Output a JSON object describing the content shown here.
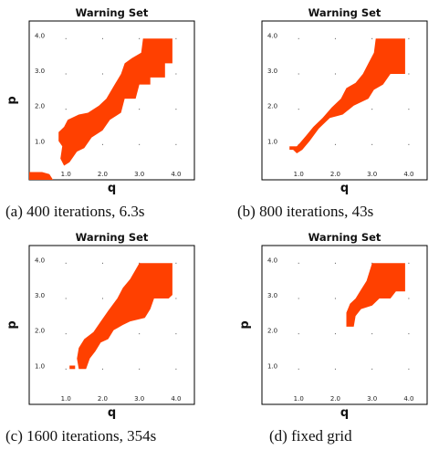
{
  "chart_data": [
    {
      "id": "a",
      "type": "heatmap",
      "title": "Warning Set",
      "xlabel": "q",
      "ylabel": "p",
      "xlim": [
        0.0,
        4.5
      ],
      "ylim": [
        0.0,
        4.5
      ],
      "xticks": [
        "1.0",
        "2.0",
        "3.0",
        "4.0"
      ],
      "yticks": [
        "1.0",
        "2.0",
        "3.0",
        "4.0"
      ],
      "region_color": "#ff4000",
      "caption": "(a)  400 iterations, 6.3s",
      "region_polygons": [
        [
          [
            3.1,
            4.0
          ],
          [
            3.9,
            4.0
          ],
          [
            3.9,
            3.3
          ],
          [
            3.7,
            3.3
          ],
          [
            3.7,
            2.9
          ],
          [
            3.3,
            2.9
          ],
          [
            3.3,
            2.7
          ],
          [
            3.0,
            2.7
          ],
          [
            2.9,
            2.3
          ],
          [
            2.6,
            2.3
          ],
          [
            2.5,
            1.9
          ],
          [
            2.2,
            1.7
          ],
          [
            2.0,
            1.4
          ],
          [
            1.7,
            1.2
          ],
          [
            1.5,
            0.9
          ],
          [
            1.3,
            0.8
          ],
          [
            1.1,
            0.5
          ],
          [
            0.95,
            0.4
          ],
          [
            0.85,
            0.6
          ],
          [
            0.9,
            0.95
          ],
          [
            0.8,
            1.1
          ],
          [
            0.8,
            1.35
          ],
          [
            0.95,
            1.5
          ],
          [
            1.05,
            1.7
          ],
          [
            1.35,
            1.85
          ],
          [
            1.6,
            1.9
          ],
          [
            1.9,
            2.1
          ],
          [
            2.1,
            2.3
          ],
          [
            2.3,
            2.65
          ],
          [
            2.5,
            3.0
          ],
          [
            2.6,
            3.3
          ],
          [
            2.8,
            3.45
          ],
          [
            3.05,
            3.6
          ]
        ],
        [
          [
            0.0,
            0.22
          ],
          [
            0.35,
            0.22
          ],
          [
            0.55,
            0.16
          ],
          [
            0.65,
            0.0
          ],
          [
            0.0,
            0.0
          ]
        ]
      ]
    },
    {
      "id": "b",
      "type": "heatmap",
      "title": "Warning Set",
      "xlabel": "q",
      "ylabel": "",
      "xlim": [
        0.0,
        4.5
      ],
      "ylim": [
        0.0,
        4.5
      ],
      "xticks": [
        "1.0",
        "2.0",
        "3.0",
        "4.0"
      ],
      "yticks": [
        "1.0",
        "2.0",
        "3.0",
        "4.0"
      ],
      "region_color": "#ff4000",
      "caption": "(b) 800 iterations, 43s",
      "region_polygons": [
        [
          [
            3.1,
            4.0
          ],
          [
            3.9,
            4.0
          ],
          [
            3.9,
            3.0
          ],
          [
            3.5,
            3.0
          ],
          [
            3.3,
            2.7
          ],
          [
            3.05,
            2.55
          ],
          [
            2.9,
            2.3
          ],
          [
            2.5,
            2.1
          ],
          [
            2.2,
            1.85
          ],
          [
            1.85,
            1.75
          ],
          [
            1.55,
            1.45
          ],
          [
            1.3,
            1.1
          ],
          [
            1.1,
            0.85
          ],
          [
            0.95,
            0.75
          ],
          [
            0.85,
            0.85
          ],
          [
            1.0,
            1.0
          ],
          [
            1.2,
            1.25
          ],
          [
            1.4,
            1.5
          ],
          [
            1.65,
            1.75
          ],
          [
            1.9,
            2.05
          ],
          [
            2.15,
            2.3
          ],
          [
            2.3,
            2.6
          ],
          [
            2.55,
            2.75
          ],
          [
            2.75,
            3.0
          ],
          [
            2.9,
            3.3
          ],
          [
            3.05,
            3.6
          ]
        ],
        [
          [
            0.75,
            0.95
          ],
          [
            0.95,
            0.95
          ],
          [
            0.95,
            0.85
          ],
          [
            0.75,
            0.85
          ]
        ]
      ]
    },
    {
      "id": "c",
      "type": "heatmap",
      "title": "Warning Set",
      "xlabel": "q",
      "ylabel": "p",
      "xlim": [
        0.0,
        4.5
      ],
      "ylim": [
        0.0,
        4.5
      ],
      "xticks": [
        "1.0",
        "2.0",
        "3.0",
        "4.0"
      ],
      "yticks": [
        "1.0",
        "2.0",
        "3.0",
        "4.0"
      ],
      "region_color": "#ff4000",
      "caption": "(c) 1600 iterations, 354s",
      "region_polygons": [
        [
          [
            3.0,
            4.0
          ],
          [
            3.9,
            4.0
          ],
          [
            3.9,
            3.1
          ],
          [
            3.8,
            3.0
          ],
          [
            3.4,
            3.0
          ],
          [
            3.3,
            2.7
          ],
          [
            3.15,
            2.45
          ],
          [
            2.75,
            2.35
          ],
          [
            2.55,
            2.25
          ],
          [
            2.3,
            2.1
          ],
          [
            2.15,
            1.85
          ],
          [
            1.95,
            1.75
          ],
          [
            1.8,
            1.5
          ],
          [
            1.65,
            1.3
          ],
          [
            1.55,
            1.0
          ],
          [
            1.35,
            1.0
          ],
          [
            1.3,
            1.3
          ],
          [
            1.35,
            1.6
          ],
          [
            1.5,
            1.85
          ],
          [
            1.75,
            2.05
          ],
          [
            1.95,
            2.35
          ],
          [
            2.15,
            2.65
          ],
          [
            2.4,
            3.0
          ],
          [
            2.55,
            3.3
          ],
          [
            2.75,
            3.55
          ]
        ],
        [
          [
            1.1,
            1.1
          ],
          [
            1.25,
            1.1
          ],
          [
            1.25,
            1.0
          ],
          [
            1.1,
            1.0
          ]
        ]
      ]
    },
    {
      "id": "d",
      "type": "heatmap",
      "title": "Warning Set",
      "xlabel": "q",
      "ylabel": "p",
      "xlim": [
        0.0,
        4.5
      ],
      "ylim": [
        0.0,
        4.5
      ],
      "xticks": [
        "1.0",
        "2.0",
        "3.0",
        "4.0"
      ],
      "yticks": [
        "1.0",
        "2.0",
        "3.0",
        "4.0"
      ],
      "region_color": "#ff4000",
      "caption": "(d) fixed grid",
      "region_polygons": [
        [
          [
            3.0,
            4.0
          ],
          [
            3.9,
            4.0
          ],
          [
            3.9,
            3.2
          ],
          [
            3.65,
            3.2
          ],
          [
            3.5,
            3.0
          ],
          [
            3.2,
            3.0
          ],
          [
            3.0,
            2.8
          ],
          [
            2.7,
            2.7
          ],
          [
            2.55,
            2.5
          ],
          [
            2.5,
            2.2
          ],
          [
            2.3,
            2.2
          ],
          [
            2.3,
            2.6
          ],
          [
            2.4,
            2.85
          ],
          [
            2.55,
            3.0
          ],
          [
            2.7,
            3.25
          ],
          [
            2.85,
            3.5
          ]
        ]
      ]
    }
  ]
}
